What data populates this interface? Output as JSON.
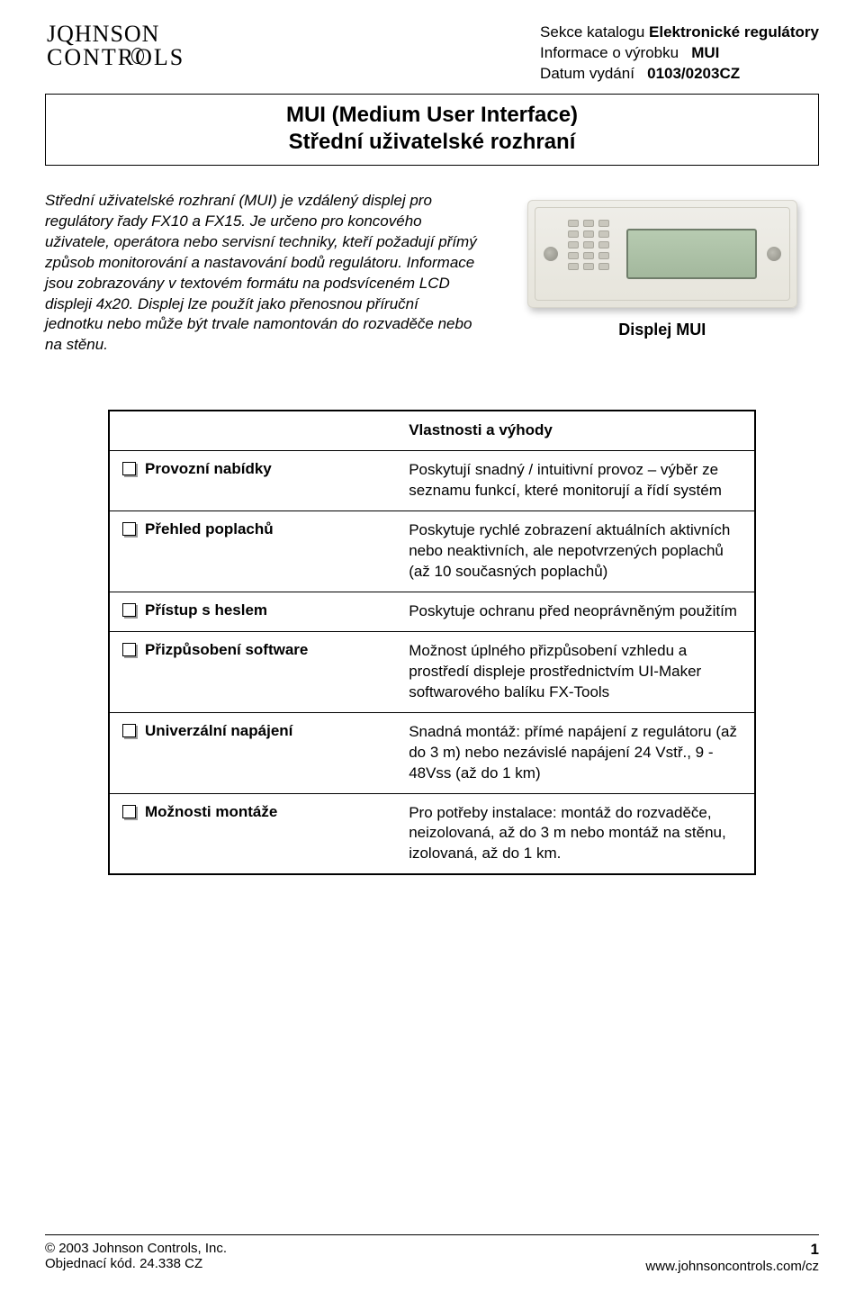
{
  "logo": {
    "line1": "JQHNSON",
    "line2": "CONTROLS"
  },
  "meta": {
    "l1_label": "Sekce katalogu",
    "l1_value": "Elektronické regulátory",
    "l2_label": "Informace o výrobku",
    "l2_value": "MUI",
    "l3_label": "Datum vydání",
    "l3_value": "0103/0203CZ"
  },
  "title": {
    "line1": "MUI (Medium User Interface)",
    "line2": "Střední uživatelské rozhraní"
  },
  "intro": "Střední uživatelské rozhraní (MUI) je vzdálený displej pro regulátory řady FX10 a FX15. Je určeno pro koncového uživatele, operátora nebo servisní techniky, kteří požadují přímý způsob monitorování a nastavování bodů regulátoru. Informace jsou zobrazovány v textovém formátu na podsvíceném LCD displeji 4x20. Displej lze použít jako přenosnou  příruční jednotku nebo může být trvale namontován do rozvaděče nebo na stěnu.",
  "caption": "Displej MUI",
  "features": {
    "header": "Vlastnosti a výhody",
    "rows": [
      {
        "label": "Provozní nabídky",
        "desc": "Poskytují snadný / intuitivní provoz – výběr ze seznamu funkcí, které monitorují a řídí systém"
      },
      {
        "label": "Přehled poplachů",
        "desc": "Poskytuje rychlé zobrazení aktuálních aktivních nebo neaktivních, ale nepotvrzených poplachů\n(až 10 současných poplachů)"
      },
      {
        "label": "Přístup s heslem",
        "desc": "Poskytuje ochranu před neoprávněným použitím"
      },
      {
        "label": "Přizpůsobení software",
        "desc": "Možnost úplného přizpůsobení vzhledu a prostředí displeje prostřednictvím UI-Maker softwarového balíku FX-Tools"
      },
      {
        "label": "Univerzální napájení",
        "desc": "Snadná montáž: přímé napájení z regulátoru (až do 3 m) nebo nezávislé napájení 24 Vstř., 9 - 48Vss (až do 1 km)"
      },
      {
        "label": "Možnosti montáže",
        "desc": "Pro potřeby instalace: montáž do rozvaděče, neizolovaná, až do 3 m nebo montáž na stěnu, izolovaná, až do 1 km."
      }
    ]
  },
  "footer": {
    "copyright": "© 2003 Johnson Controls, Inc.",
    "order": "Objednací kód. 24.338 CZ",
    "page": "1",
    "url": "www.johnsoncontrols.com/cz"
  },
  "colors": {
    "text": "#000000",
    "background": "#ffffff",
    "border": "#000000",
    "device_body": "#e6e4db",
    "device_screen": "#a3b89d"
  }
}
